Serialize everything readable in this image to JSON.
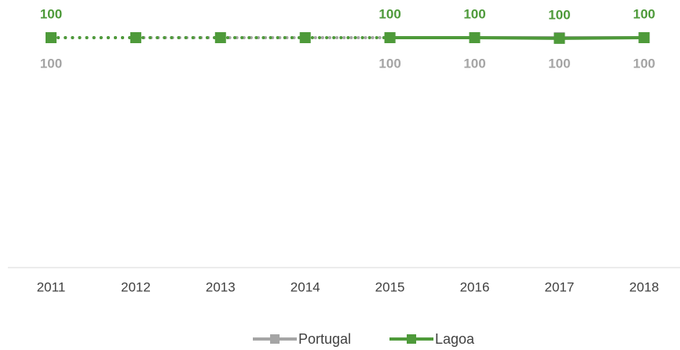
{
  "chart_data": {
    "type": "line",
    "x": [
      "2011",
      "2012",
      "2013",
      "2014",
      "2015",
      "2016",
      "2017",
      "2018"
    ],
    "ylim": [
      0,
      100
    ],
    "dotted_until": "2015",
    "series": [
      {
        "name": "Portugal",
        "color": "#a5a5a5",
        "values": [
          100,
          null,
          null,
          null,
          100,
          100,
          100,
          100
        ]
      },
      {
        "name": "Lagoa",
        "color": "#4e9a3a",
        "values": [
          100,
          100,
          100,
          100,
          100,
          100,
          99.7,
          100
        ],
        "value_labels": [
          "100",
          null,
          null,
          null,
          "100",
          "100",
          "100",
          "100"
        ]
      }
    ]
  }
}
